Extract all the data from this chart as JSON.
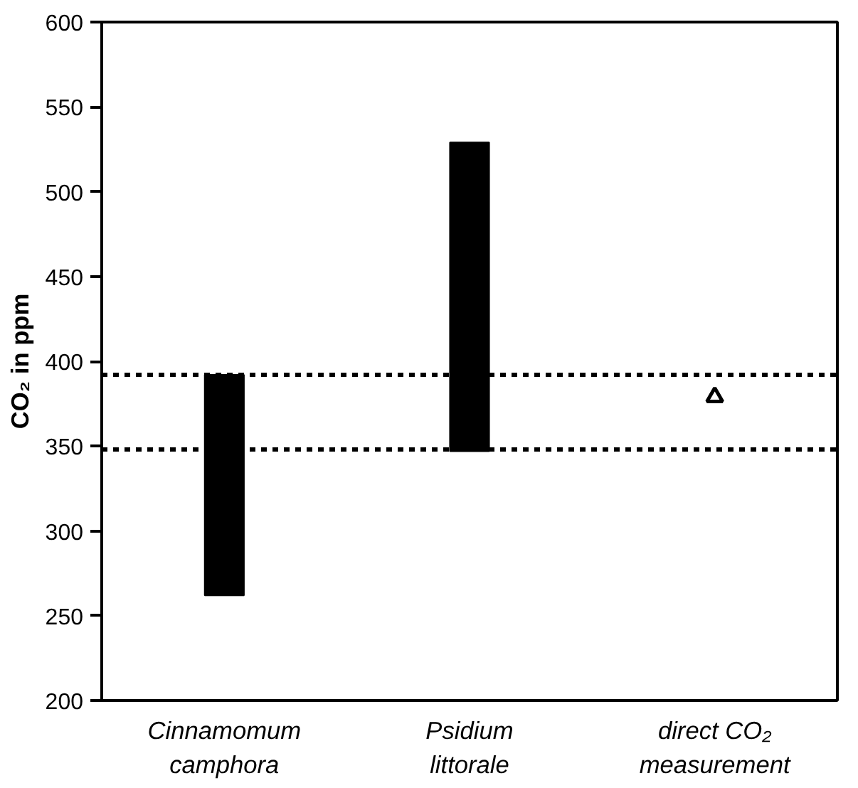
{
  "chart_data": {
    "type": "bar",
    "ylabel": "CO₂ in ppm",
    "categories": [
      "Cinnamomum camphora",
      "Psidium littorale",
      "direct CO₂ measurement"
    ],
    "ylim": [
      200,
      600
    ],
    "yticks": [
      200,
      250,
      300,
      350,
      400,
      450,
      500,
      550,
      600
    ],
    "series": [
      {
        "color": "#000000",
        "values": [
          130,
          182,
          null
        ],
        "base": [
          262,
          347,
          null
        ]
      },
      {
        "type": "scatter",
        "color": "#000000",
        "marker": "triangle",
        "x": [
          "direct CO₂ measurement"
        ],
        "values": [
          379
        ]
      }
    ],
    "ref_lines": [
      {
        "axis": "y",
        "value": 392,
        "color": "#000000",
        "line_style": "dashed"
      },
      {
        "axis": "y",
        "value": 348,
        "color": "#000000",
        "line_style": "dashed"
      }
    ]
  }
}
